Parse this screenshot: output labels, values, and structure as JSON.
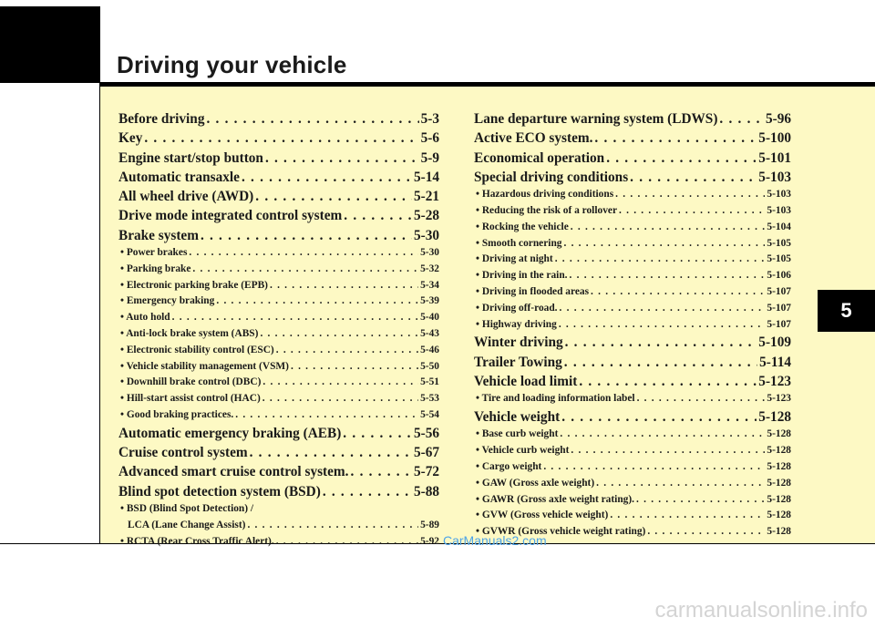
{
  "header": {
    "title": "Driving your vehicle",
    "chapter_number": "5"
  },
  "toc_left": [
    {
      "label": "Before driving",
      "page": "5-3",
      "level": "main"
    },
    {
      "label": "Key",
      "page": "5-6",
      "level": "main"
    },
    {
      "label": "Engine start/stop button",
      "page": "5-9",
      "level": "main"
    },
    {
      "label": "Automatic transaxle",
      "page": "5-14",
      "level": "main"
    },
    {
      "label": "All wheel drive (AWD)",
      "page": "5-21",
      "level": "main"
    },
    {
      "label": "Drive mode integrated control system",
      "page": "5-28",
      "level": "main"
    },
    {
      "label": "Brake system",
      "page": "5-30",
      "level": "main"
    },
    {
      "label": "• Power brakes",
      "page": "5-30",
      "level": "sub"
    },
    {
      "label": "• Parking brake",
      "page": "5-32",
      "level": "sub"
    },
    {
      "label": "• Electronic parking brake (EPB)",
      "page": "5-34",
      "level": "sub"
    },
    {
      "label": "• Emergency braking",
      "page": "5-39",
      "level": "sub"
    },
    {
      "label": "• Auto hold",
      "page": "5-40",
      "level": "sub"
    },
    {
      "label": "• Anti-lock brake system (ABS)",
      "page": "5-43",
      "level": "sub"
    },
    {
      "label": "• Electronic stability control (ESC)",
      "page": "5-46",
      "level": "sub"
    },
    {
      "label": "• Vehicle stability management (VSM)",
      "page": "5-50",
      "level": "sub"
    },
    {
      "label": "• Downhill brake control (DBC)",
      "page": "5-51",
      "level": "sub"
    },
    {
      "label": "• Hill-start assist control (HAC)",
      "page": "5-53",
      "level": "sub"
    },
    {
      "label": "• Good braking practices.",
      "page": "5-54",
      "level": "sub"
    },
    {
      "label": "Automatic emergency braking (AEB)",
      "page": "5-56",
      "level": "main"
    },
    {
      "label": "Cruise control system",
      "page": "5-67",
      "level": "main"
    },
    {
      "label": "Advanced smart cruise control system.",
      "page": "5-72",
      "level": "main"
    },
    {
      "label": "Blind spot detection system (BSD)",
      "page": "5-88",
      "level": "main"
    },
    {
      "label": "• BSD (Blind Spot Detection) /",
      "page": "",
      "level": "sub-nodots"
    },
    {
      "label": "LCA (Lane Change Assist)",
      "page": "5-89",
      "level": "sub-cont"
    },
    {
      "label": "• RCTA (Rear Cross Traffic Alert).",
      "page": "5-92",
      "level": "sub"
    }
  ],
  "toc_right": [
    {
      "label": "Lane departure warning system (LDWS)",
      "page": "5-96",
      "level": "main"
    },
    {
      "label": "Active ECO system.",
      "page": "5-100",
      "level": "main"
    },
    {
      "label": "Economical operation",
      "page": "5-101",
      "level": "main"
    },
    {
      "label": "Special driving conditions",
      "page": "5-103",
      "level": "main"
    },
    {
      "label": "• Hazardous driving conditions",
      "page": "5-103",
      "level": "sub"
    },
    {
      "label": "• Reducing the risk of a rollover",
      "page": "5-103",
      "level": "sub"
    },
    {
      "label": "• Rocking the vehicle",
      "page": "5-104",
      "level": "sub"
    },
    {
      "label": "• Smooth cornering",
      "page": "5-105",
      "level": "sub"
    },
    {
      "label": "• Driving at night",
      "page": "5-105",
      "level": "sub"
    },
    {
      "label": "• Driving in the rain.",
      "page": "5-106",
      "level": "sub"
    },
    {
      "label": "• Driving in flooded areas",
      "page": "5-107",
      "level": "sub"
    },
    {
      "label": "• Driving off-road.",
      "page": "5-107",
      "level": "sub"
    },
    {
      "label": "• Highway driving",
      "page": "5-107",
      "level": "sub"
    },
    {
      "label": "Winter driving",
      "page": "5-109",
      "level": "main"
    },
    {
      "label": "Trailer Towing",
      "page": "5-114",
      "level": "main"
    },
    {
      "label": "Vehicle load limit",
      "page": "5-123",
      "level": "main"
    },
    {
      "label": "• Tire and loading information label",
      "page": "5-123",
      "level": "sub"
    },
    {
      "label": "Vehicle weight",
      "page": "5-128",
      "level": "main"
    },
    {
      "label": "• Base curb weight",
      "page": "5-128",
      "level": "sub"
    },
    {
      "label": "• Vehicle curb weight",
      "page": "5-128",
      "level": "sub"
    },
    {
      "label": "• Cargo weight",
      "page": "5-128",
      "level": "sub"
    },
    {
      "label": "• GAW (Gross axle weight)",
      "page": "5-128",
      "level": "sub"
    },
    {
      "label": "• GAWR (Gross axle weight rating).",
      "page": "5-128",
      "level": "sub"
    },
    {
      "label": "• GVW (Gross vehicle weight)",
      "page": "5-128",
      "level": "sub"
    },
    {
      "label": "• GVWR (Gross vehicle weight rating)",
      "page": "5-128",
      "level": "sub"
    }
  ],
  "watermarks": {
    "top": "CarManuals2.com",
    "bottom": "carmanualsonline.info"
  }
}
